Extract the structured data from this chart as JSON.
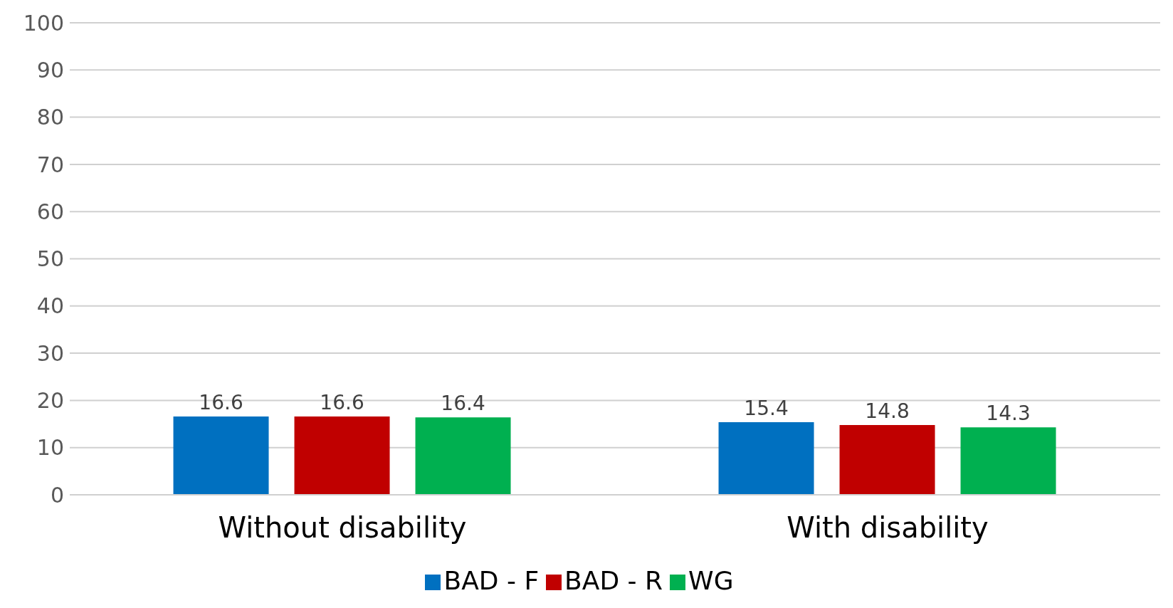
{
  "chart_data": {
    "type": "bar",
    "categories": [
      "Without disability",
      "With disability"
    ],
    "series": [
      {
        "name": "BAD - F",
        "color": "#0070c0",
        "values": [
          16.6,
          15.4
        ]
      },
      {
        "name": "BAD - R",
        "color": "#c00000",
        "values": [
          16.6,
          14.8
        ]
      },
      {
        "name": "WG",
        "color": "#00b050",
        "values": [
          16.4,
          14.3
        ]
      }
    ],
    "ylim": [
      0,
      100
    ],
    "yticks": [
      0,
      10,
      20,
      30,
      40,
      50,
      60,
      70,
      80,
      90,
      100
    ],
    "grid": "y",
    "legend": "bottom",
    "data_labels": true
  }
}
